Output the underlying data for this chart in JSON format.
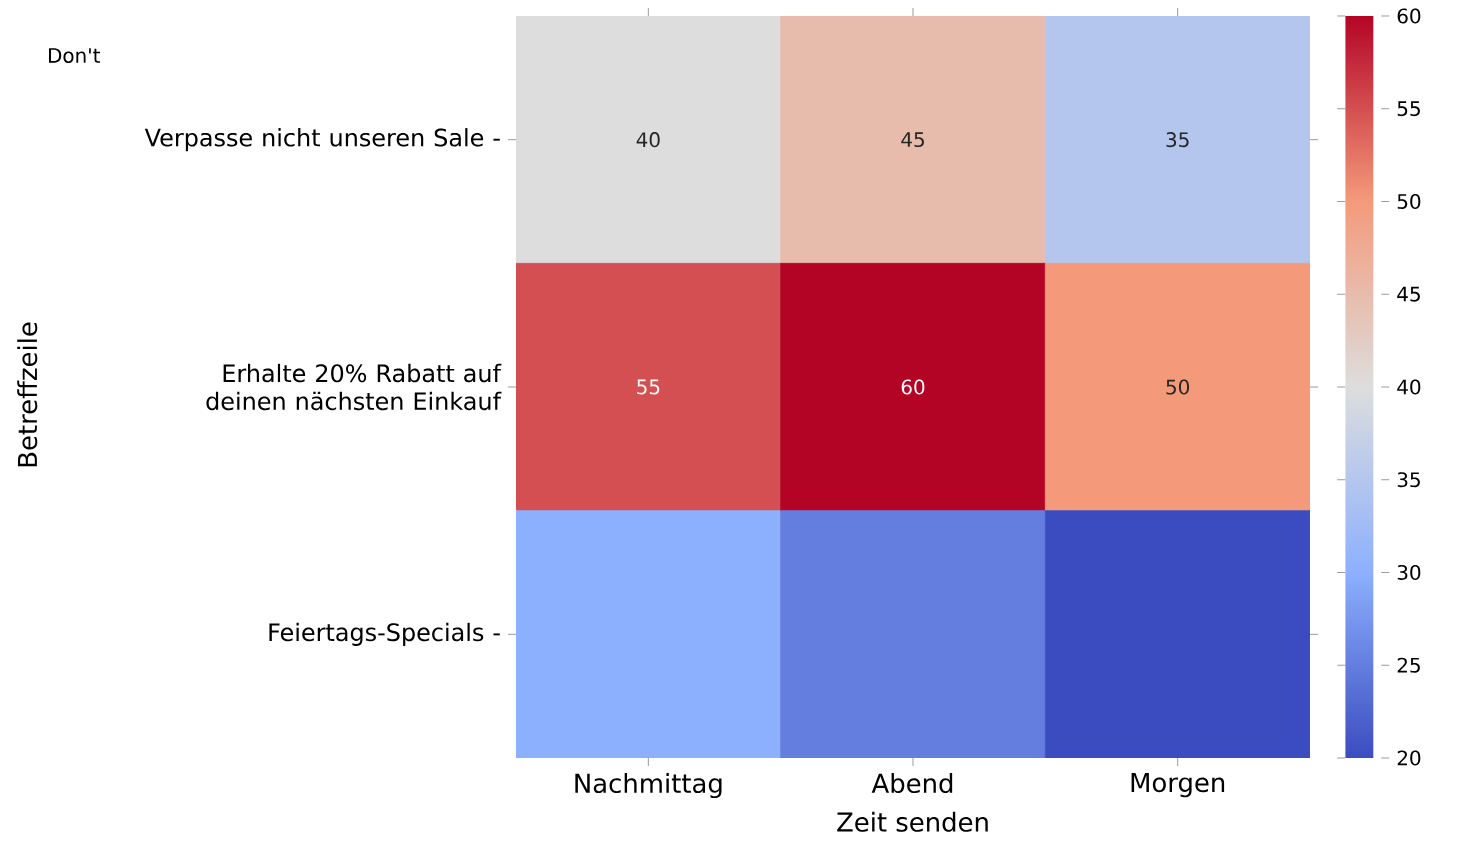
{
  "chart_data": {
    "type": "heatmap",
    "xlabel": "Zeit senden",
    "ylabel": "Betreffzeile",
    "categories": [
      "Nachmittag",
      "Abend",
      "Morgen"
    ],
    "y_categories": [
      "Verpasse nicht unseren Sale -",
      "Erhalte 20% Rabatt auf deinen nächsten Einkauf",
      "Feiertags-Specials -"
    ],
    "cells": [
      [
        40,
        45,
        35
      ],
      [
        55,
        60,
        50
      ],
      [
        30,
        25,
        20
      ]
    ],
    "cell_labels": [
      [
        "40",
        "45",
        "35"
      ],
      [
        "55",
        "60",
        "50"
      ],
      [
        null,
        null,
        null
      ]
    ],
    "clim": [
      20,
      60
    ],
    "cticks": [
      20,
      25,
      30,
      35,
      40,
      45,
      50,
      55,
      60
    ],
    "annotations": [
      "Don't"
    ]
  }
}
